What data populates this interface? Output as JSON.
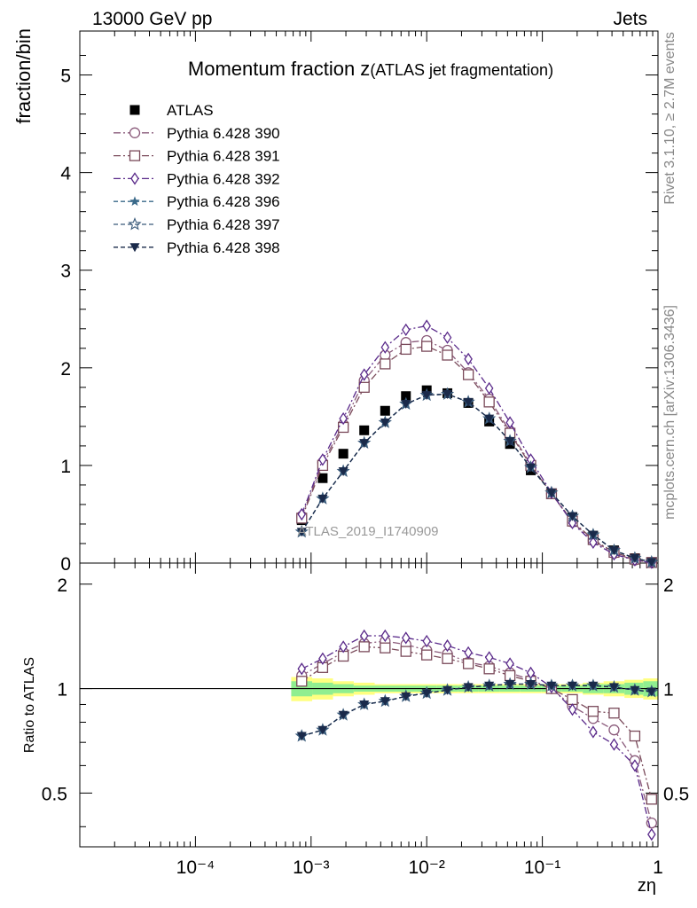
{
  "header": {
    "left": "13000 GeV pp",
    "right": "Jets"
  },
  "side_labels": {
    "rivet": "Rivet 3.1.10, ≥ 2.7M events",
    "mcplots": "mcplots.cern.ch [arXiv:1306.3436]"
  },
  "colors": {
    "atlas": "#000000",
    "p390": "#8a5a7a",
    "p391": "#7a4a5a",
    "p392": "#5a2a8a",
    "p396": "#3a6a8a",
    "p397": "#3a5a7a",
    "p398": "#1a2a4a",
    "band_inner": "#90ee90",
    "band_outer": "#ffff80"
  },
  "chart_data": [
    {
      "type": "line",
      "title": "Momentum fraction z",
      "title_note": "(ATLAS jet fragmentation)",
      "ylabel": "fraction/bin",
      "watermark": "ATLAS_2019_I1740909",
      "xscale": "log",
      "xlim": [
        1e-05,
        1
      ],
      "ylim": [
        0,
        5.45
      ],
      "yticks": [
        0,
        1,
        2,
        3,
        4,
        5
      ],
      "legend_position": "top-left",
      "x": [
        0.00083,
        0.00126,
        0.0019,
        0.00288,
        0.00437,
        0.00661,
        0.01,
        0.0151,
        0.0229,
        0.0347,
        0.0525,
        0.0794,
        0.12,
        0.182,
        0.275,
        0.417,
        0.631,
        0.881
      ],
      "series": [
        {
          "name": "ATLAS",
          "key": "atlas",
          "marker": "square-filled",
          "dash": "none",
          "values": [
            0.44,
            0.87,
            1.12,
            1.36,
            1.56,
            1.71,
            1.77,
            1.74,
            1.64,
            1.45,
            1.22,
            0.95,
            0.71,
            0.47,
            0.28,
            0.13,
            0.05,
            0.01
          ]
        },
        {
          "name": "Pythia 6.428 390",
          "key": "p390",
          "marker": "circle-open",
          "dash": "8 3 2 3",
          "values": [
            0.48,
            1.03,
            1.42,
            1.87,
            2.13,
            2.26,
            2.28,
            2.18,
            1.95,
            1.68,
            1.35,
            1.01,
            0.71,
            0.42,
            0.23,
            0.1,
            0.03,
            0.005
          ]
        },
        {
          "name": "Pythia 6.428 391",
          "key": "p391",
          "marker": "square-open",
          "dash": "8 3 2 3",
          "values": [
            0.46,
            1.0,
            1.39,
            1.8,
            2.04,
            2.19,
            2.22,
            2.13,
            1.93,
            1.65,
            1.33,
            1.0,
            0.71,
            0.43,
            0.24,
            0.11,
            0.04,
            0.006
          ]
        },
        {
          "name": "Pythia 6.428 392",
          "key": "p392",
          "marker": "diamond-open",
          "dash": "8 3 2 3",
          "values": [
            0.5,
            1.06,
            1.48,
            1.93,
            2.21,
            2.39,
            2.43,
            2.31,
            2.09,
            1.79,
            1.44,
            1.06,
            0.72,
            0.41,
            0.21,
            0.09,
            0.03,
            0.004
          ]
        },
        {
          "name": "Pythia 6.428 396",
          "key": "p396",
          "marker": "star-filled",
          "dash": "5 3",
          "values": [
            0.32,
            0.66,
            0.94,
            1.23,
            1.44,
            1.63,
            1.72,
            1.73,
            1.65,
            1.48,
            1.25,
            0.98,
            0.72,
            0.48,
            0.29,
            0.13,
            0.05,
            0.01
          ]
        },
        {
          "name": "Pythia 6.428 397",
          "key": "p397",
          "marker": "star-open",
          "dash": "5 3",
          "values": [
            0.32,
            0.66,
            0.94,
            1.23,
            1.44,
            1.63,
            1.72,
            1.73,
            1.65,
            1.48,
            1.25,
            0.98,
            0.72,
            0.48,
            0.29,
            0.13,
            0.05,
            0.01
          ]
        },
        {
          "name": "Pythia 6.428 398",
          "key": "p398",
          "marker": "triangle-down-filled",
          "dash": "5 3",
          "values": [
            0.32,
            0.66,
            0.94,
            1.23,
            1.44,
            1.63,
            1.72,
            1.73,
            1.65,
            1.48,
            1.25,
            0.98,
            0.72,
            0.48,
            0.29,
            0.13,
            0.05,
            0.01
          ]
        }
      ]
    },
    {
      "type": "line",
      "ylabel": "Ratio to ATLAS",
      "xlabel": "zη",
      "xscale": "log",
      "xlim": [
        1e-05,
        1
      ],
      "ylim": [
        0.35,
        2.3
      ],
      "xtick_labels": [
        "10⁻⁴",
        "10⁻³",
        "10⁻²",
        "10⁻¹",
        "1"
      ],
      "ytick_labels": [
        "0.5",
        "1",
        "2"
      ],
      "reference_line": 1,
      "band_outer": [
        0.08,
        0.07,
        0.05,
        0.04,
        0.03,
        0.03,
        0.03,
        0.03,
        0.03,
        0.03,
        0.03,
        0.03,
        0.03,
        0.03,
        0.04,
        0.05,
        0.06,
        0.07
      ],
      "band_inner": [
        0.05,
        0.04,
        0.03,
        0.02,
        0.02,
        0.02,
        0.02,
        0.02,
        0.02,
        0.02,
        0.02,
        0.02,
        0.02,
        0.02,
        0.03,
        0.03,
        0.04,
        0.05
      ],
      "series": [
        {
          "key": "p390",
          "values": [
            1.09,
            1.18,
            1.27,
            1.35,
            1.37,
            1.34,
            1.29,
            1.26,
            1.19,
            1.16,
            1.11,
            1.06,
            1.0,
            0.89,
            0.82,
            0.76,
            0.62,
            0.41
          ]
        },
        {
          "key": "p391",
          "values": [
            1.05,
            1.15,
            1.24,
            1.32,
            1.31,
            1.28,
            1.25,
            1.22,
            1.18,
            1.14,
            1.09,
            1.05,
            1.0,
            0.93,
            0.86,
            0.85,
            0.73,
            0.48
          ]
        },
        {
          "key": "p392",
          "values": [
            1.14,
            1.22,
            1.32,
            1.42,
            1.42,
            1.4,
            1.37,
            1.33,
            1.27,
            1.23,
            1.18,
            1.11,
            1.01,
            0.87,
            0.75,
            0.69,
            0.6,
            0.38
          ]
        },
        {
          "key": "p396",
          "values": [
            0.73,
            0.76,
            0.84,
            0.9,
            0.92,
            0.95,
            0.97,
            0.99,
            1.01,
            1.02,
            1.03,
            1.03,
            1.02,
            1.02,
            1.02,
            1.01,
            0.99,
            0.98
          ]
        },
        {
          "key": "p397",
          "values": [
            0.73,
            0.76,
            0.84,
            0.9,
            0.92,
            0.95,
            0.97,
            0.99,
            1.01,
            1.02,
            1.03,
            1.03,
            1.02,
            1.02,
            1.02,
            1.01,
            0.99,
            0.98
          ]
        },
        {
          "key": "p398",
          "values": [
            0.73,
            0.76,
            0.84,
            0.9,
            0.92,
            0.95,
            0.97,
            0.99,
            1.01,
            1.02,
            1.03,
            1.03,
            1.02,
            1.02,
            1.02,
            1.01,
            0.99,
            0.98
          ]
        }
      ]
    }
  ]
}
